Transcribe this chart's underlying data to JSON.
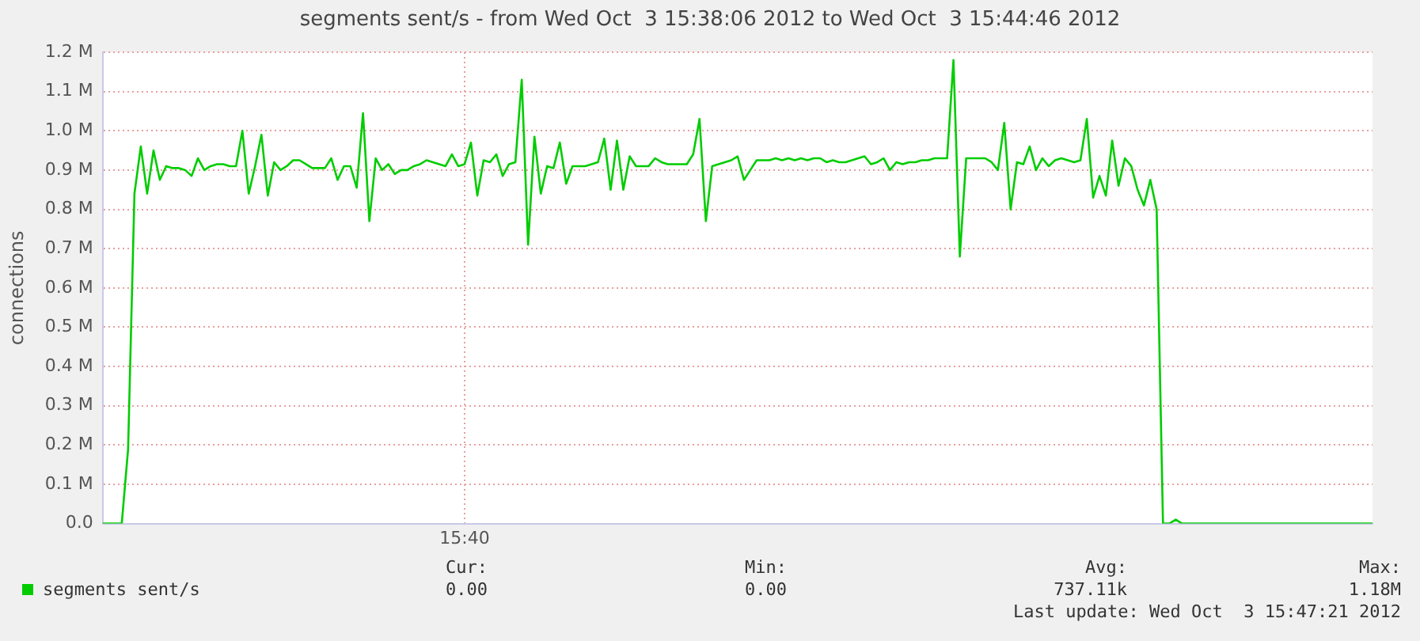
{
  "chart_data": {
    "type": "line",
    "title": "segments sent/s - from Wed Oct  3 15:38:06 2012 to Wed Oct  3 15:44:46 2012",
    "ylabel": "connections",
    "categories": [
      null,
      null,
      null,
      null,
      null,
      null,
      null,
      null,
      null,
      null,
      null,
      null,
      null,
      null,
      null,
      null,
      null,
      null,
      null,
      null,
      null,
      null,
      null,
      null,
      null,
      null,
      null,
      null,
      null,
      null,
      null,
      null,
      null,
      null,
      null,
      null,
      null,
      null,
      null,
      null,
      null,
      null,
      null,
      null,
      null,
      null,
      null,
      null,
      null,
      null,
      null,
      null,
      null,
      null,
      null,
      null,
      null,
      "15:40",
      null,
      null,
      null,
      null,
      null,
      null,
      null,
      null,
      null,
      null,
      null,
      null,
      null,
      null,
      null,
      null,
      null,
      null,
      null,
      null,
      null,
      null,
      null,
      null,
      null,
      null,
      null,
      null,
      null,
      null,
      null,
      null,
      null,
      null,
      null,
      null,
      null,
      null,
      null,
      null,
      null,
      null,
      null,
      null,
      null,
      null,
      null,
      null,
      null,
      null,
      null,
      null,
      null,
      null,
      null,
      null,
      null,
      null,
      null,
      null,
      null,
      null,
      null,
      null,
      null,
      null,
      null,
      null,
      null,
      null,
      null,
      null,
      null,
      null,
      null,
      null,
      null,
      null,
      null,
      null,
      null,
      null,
      null,
      null,
      null,
      null,
      null,
      null,
      null,
      null,
      null,
      null,
      null,
      null,
      null,
      null,
      null,
      null,
      null,
      null,
      null,
      null,
      null,
      null,
      null,
      null,
      null,
      null,
      null,
      null,
      null,
      null,
      null,
      null,
      null,
      null,
      null,
      null,
      null,
      null,
      null,
      null,
      null,
      null,
      null,
      null,
      null,
      null,
      null,
      null,
      null,
      null,
      null,
      null,
      null,
      null,
      null,
      null,
      null,
      null,
      null,
      null,
      null
    ],
    "series": [
      {
        "name": "segments sent/s",
        "color": "#00cc00",
        "values": [
          0,
          0,
          0,
          0,
          0.19,
          0.84,
          0.96,
          0.84,
          0.95,
          0.875,
          0.91,
          0.905,
          0.905,
          0.9,
          0.885,
          0.93,
          0.9,
          0.91,
          0.915,
          0.915,
          0.91,
          0.91,
          1.0,
          0.84,
          0.91,
          0.99,
          0.835,
          0.92,
          0.9,
          0.91,
          0.925,
          0.925,
          0.915,
          0.905,
          0.905,
          0.905,
          0.93,
          0.875,
          0.91,
          0.91,
          0.855,
          1.045,
          0.77,
          0.93,
          0.9,
          0.915,
          0.89,
          0.9,
          0.9,
          0.91,
          0.915,
          0.925,
          0.92,
          0.915,
          0.91,
          0.94,
          0.91,
          0.915,
          0.97,
          0.835,
          0.925,
          0.92,
          0.94,
          0.885,
          0.915,
          0.92,
          1.13,
          0.71,
          0.985,
          0.84,
          0.91,
          0.905,
          0.97,
          0.865,
          0.91,
          0.91,
          0.91,
          0.915,
          0.92,
          0.98,
          0.85,
          0.975,
          0.85,
          0.935,
          0.91,
          0.91,
          0.91,
          0.93,
          0.92,
          0.915,
          0.915,
          0.915,
          0.915,
          0.94,
          1.03,
          0.77,
          0.91,
          0.915,
          0.92,
          0.925,
          0.935,
          0.875,
          0.9,
          0.925,
          0.925,
          0.925,
          0.93,
          0.925,
          0.93,
          0.925,
          0.93,
          0.925,
          0.93,
          0.93,
          0.92,
          0.925,
          0.92,
          0.92,
          0.925,
          0.93,
          0.935,
          0.915,
          0.92,
          0.93,
          0.9,
          0.92,
          0.915,
          0.92,
          0.92,
          0.925,
          0.925,
          0.93,
          0.93,
          0.93,
          1.18,
          0.68,
          0.93,
          0.93,
          0.93,
          0.93,
          0.92,
          0.9,
          1.02,
          0.8,
          0.92,
          0.915,
          0.96,
          0.9,
          0.93,
          0.91,
          0.925,
          0.93,
          0.925,
          0.92,
          0.925,
          1.03,
          0.83,
          0.885,
          0.835,
          0.975,
          0.86,
          0.93,
          0.91,
          0.85,
          0.81,
          0.875,
          0.8,
          0,
          0,
          0.01,
          0,
          0,
          0,
          0,
          0,
          0,
          0,
          0,
          0,
          0,
          0,
          0,
          0,
          0,
          0,
          0,
          0,
          0,
          0,
          0,
          0,
          0,
          0,
          0,
          0,
          0,
          0,
          0,
          0,
          0,
          0
        ]
      }
    ],
    "ylim": [
      0,
      1.2
    ],
    "yticks": [
      {
        "value": 0,
        "label": "0.0"
      },
      {
        "value": 0.1,
        "label": "0.1 M"
      },
      {
        "value": 0.2,
        "label": "0.2 M"
      },
      {
        "value": 0.3,
        "label": "0.3 M"
      },
      {
        "value": 0.4,
        "label": "0.4 M"
      },
      {
        "value": 0.5,
        "label": "0.5 M"
      },
      {
        "value": 0.6,
        "label": "0.6 M"
      },
      {
        "value": 0.7,
        "label": "0.7 M"
      },
      {
        "value": 0.8,
        "label": "0.8 M"
      },
      {
        "value": 0.9,
        "label": "0.9 M"
      },
      {
        "value": 1.0,
        "label": "1.0 M"
      },
      {
        "value": 1.1,
        "label": "1.1 M"
      },
      {
        "value": 1.2,
        "label": "1.2 M"
      }
    ],
    "grid": true,
    "legend": "bottom left",
    "marker": "none",
    "line_style": "solid",
    "annotations": [
      "Cur:",
      "0.00",
      "Min:",
      "0.00",
      "Avg:",
      "737.11k",
      "Max:",
      "1.18M",
      "Last update: Wed Oct  3 15:47:21 2012"
    ]
  }
}
